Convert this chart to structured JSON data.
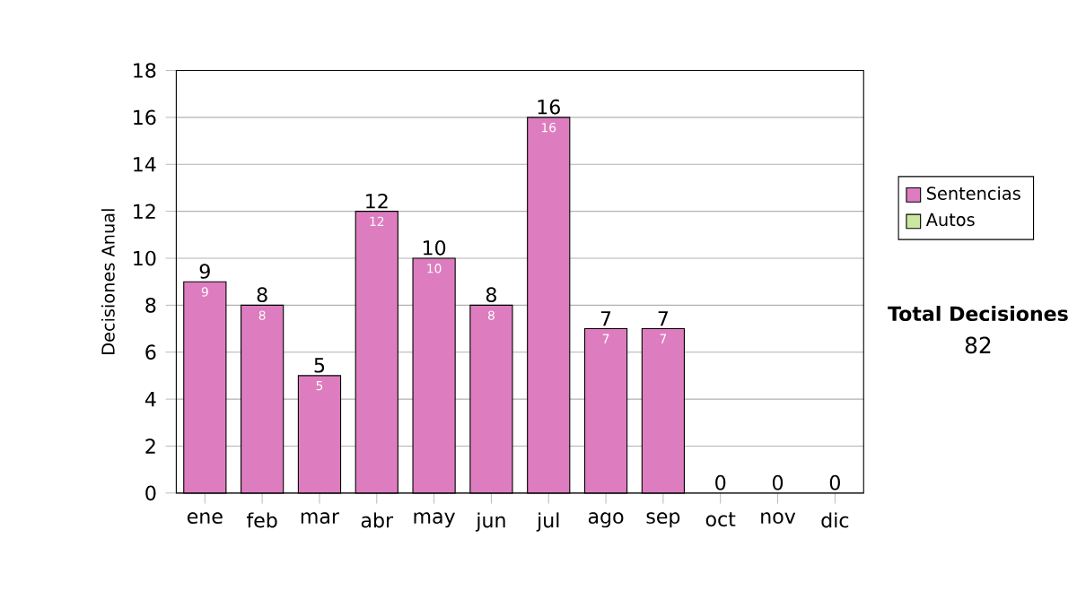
{
  "chart_data": {
    "type": "bar",
    "stacked": true,
    "ylabel": "Decisiones Anual",
    "categories": [
      "ene",
      "feb",
      "mar",
      "abr",
      "may",
      "jun",
      "jul",
      "ago",
      "sep",
      "oct",
      "nov",
      "dic"
    ],
    "series": [
      {
        "name": "Sentencias",
        "color": "#dd7dbf",
        "values": [
          9,
          8,
          5,
          12,
          10,
          8,
          16,
          7,
          7,
          0,
          0,
          0
        ],
        "value_labels": [
          "9",
          "8",
          "5",
          "12",
          "10",
          "8",
          "16",
          "7",
          "7",
          null,
          null,
          null
        ]
      },
      {
        "name": "Autos",
        "color": "#cce8a0",
        "values": [
          0,
          0,
          0,
          0,
          0,
          0,
          0,
          0,
          0,
          0,
          0,
          0
        ]
      }
    ],
    "totals": [
      "9",
      "8",
      "5",
      "12",
      "10",
      "8",
      "16",
      "7",
      "7",
      "0",
      "0",
      "0"
    ],
    "ylim": [
      0,
      18
    ],
    "yticks": [
      0,
      2,
      4,
      6,
      8,
      10,
      12,
      14,
      16,
      18
    ],
    "grid": "y",
    "legend": "right",
    "annotations": [
      "Total Decisiones",
      "82"
    ]
  }
}
